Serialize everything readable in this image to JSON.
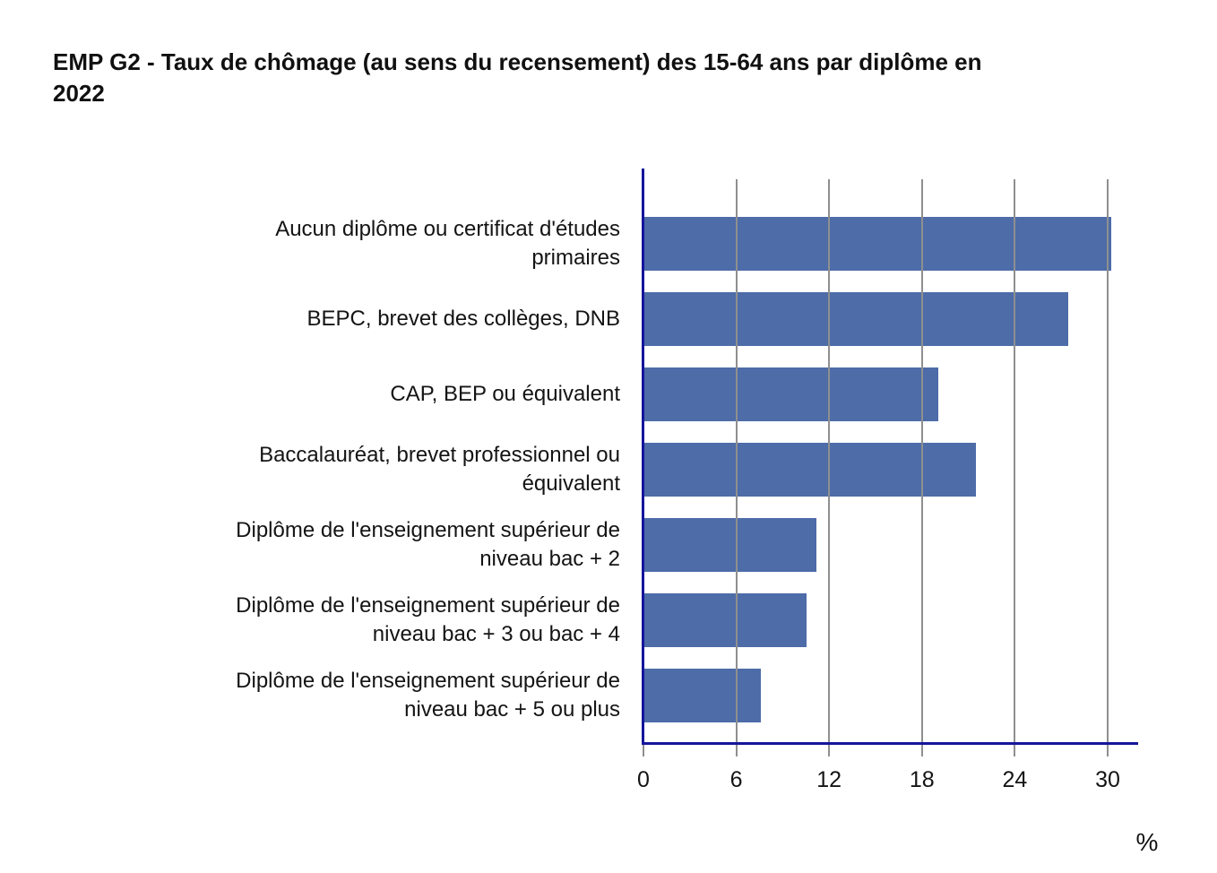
{
  "header": {
    "title_lines": [
      "EMP G2 - Taux de chômage (au sens du recensement) des 15-64 ans par diplôme en",
      "2022"
    ]
  },
  "chart_data": {
    "type": "bar",
    "orientation": "horizontal",
    "title": "EMP G2 - Taux de chômage (au sens du recensement) des 15-64 ans par diplôme en 2022",
    "xlabel": "%",
    "ylabel": "",
    "xlim": [
      0,
      32
    ],
    "xticks": [
      0,
      6,
      12,
      18,
      24,
      30
    ],
    "grid": "vertical gridlines, drawn across bars",
    "legend": "none",
    "colors": {
      "bar": "#4D6CA8",
      "axis": "#15159C",
      "gridline": "#8F8F8F",
      "text": "#141414"
    },
    "categories": [
      "Aucun diplôme ou certificat d'études primaires",
      "BEPC, brevet des collèges, DNB",
      "CAP, BEP ou équivalent",
      "Baccalauréat, brevet professionnel ou équivalent",
      "Diplôme de l'enseignement supérieur de niveau bac + 2",
      "Diplôme de l'enseignement supérieur de niveau bac + 3 ou bac + 4",
      "Diplôme de l'enseignement supérieur de niveau bac + 5 ou plus"
    ],
    "values": [
      30.2,
      27.4,
      19.0,
      21.4,
      11.1,
      10.5,
      7.5
    ],
    "label_lines": [
      [
        "Aucun diplôme ou certificat d'études",
        "primaires"
      ],
      [
        "BEPC, brevet des collèges, DNB"
      ],
      [
        "CAP, BEP ou équivalent"
      ],
      [
        "Baccalauréat, brevet professionnel ou",
        "équivalent"
      ],
      [
        "Diplôme de l'enseignement supérieur de",
        "niveau bac + 2"
      ],
      [
        "Diplôme de l'enseignement supérieur de",
        "niveau bac + 3 ou bac + 4"
      ],
      [
        "Diplôme de l'enseignement supérieur de",
        "niveau bac + 5 ou plus"
      ]
    ]
  }
}
